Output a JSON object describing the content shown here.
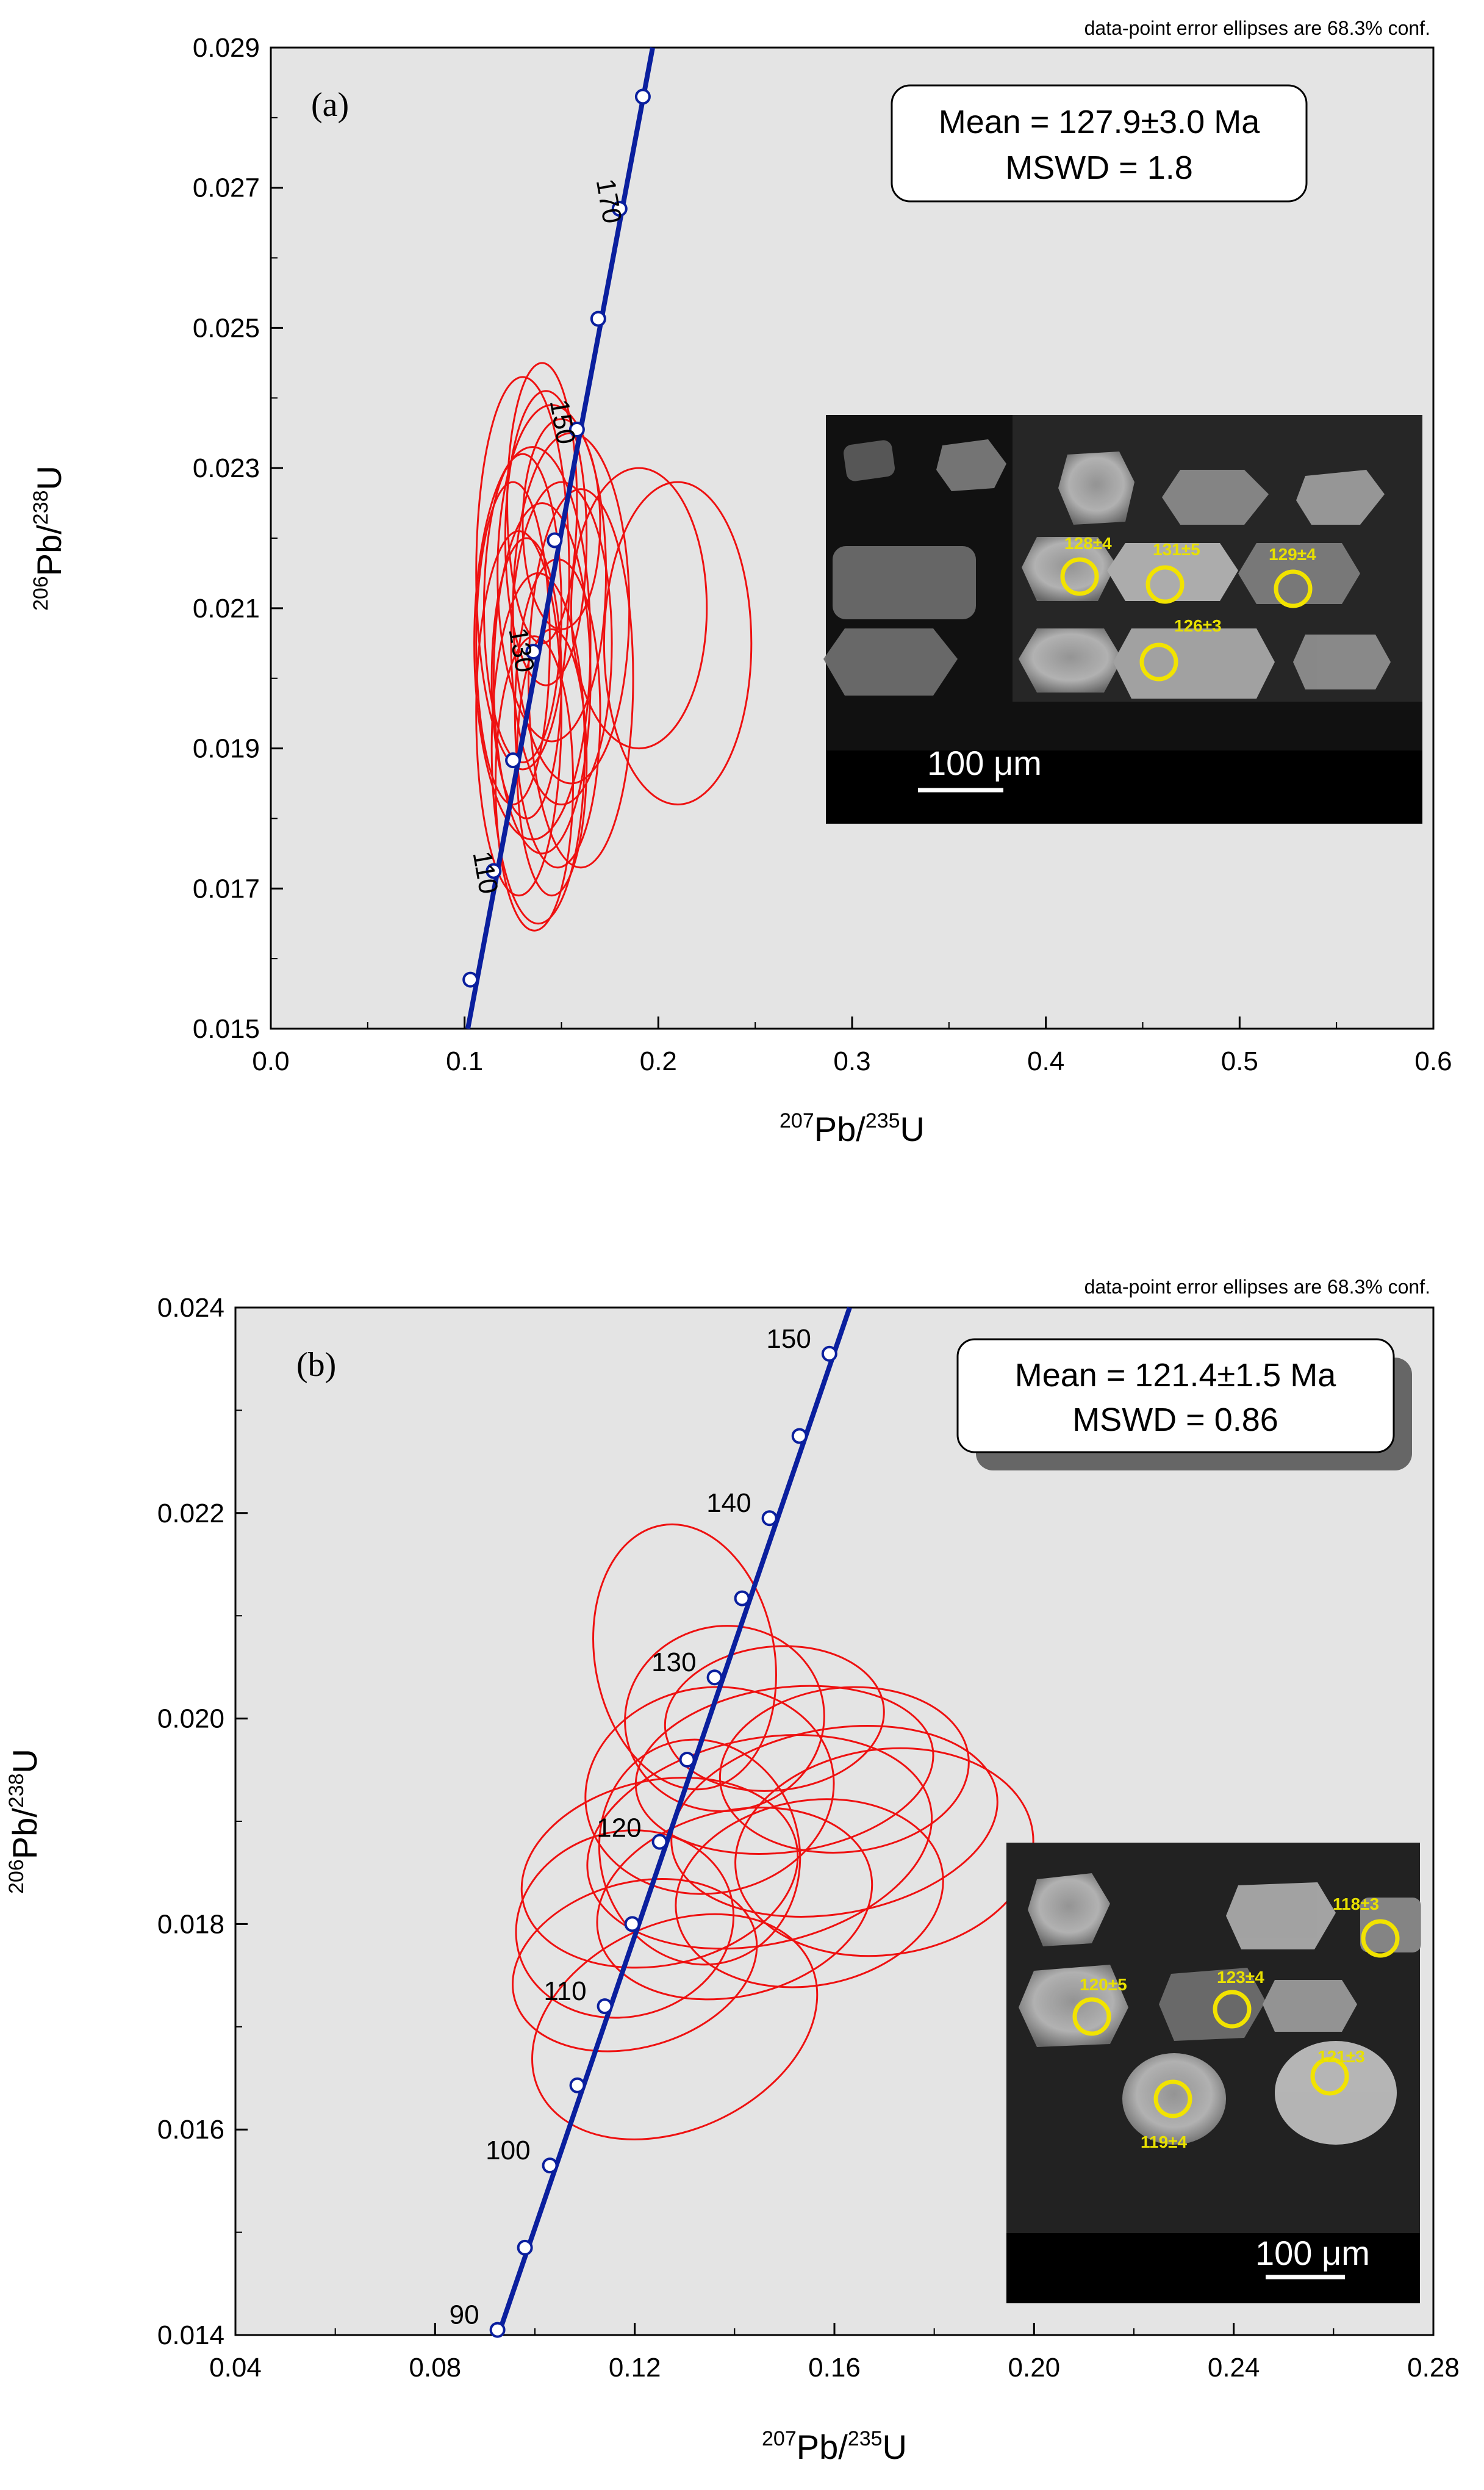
{
  "chart_data": [
    {
      "type": "scatter",
      "panel_label": "(a)",
      "note": "data-point error ellipses are 68.3% conf.",
      "xlabel": {
        "top1": "207",
        "base1": "Pb/",
        "top2": "235",
        "base2": "U"
      },
      "ylabel": {
        "top1": "206",
        "base1": "Pb/",
        "top2": "238",
        "base2": "U"
      },
      "xlim": [
        0.0,
        0.6
      ],
      "ylim": [
        0.015,
        0.029
      ],
      "xticks": [
        "0.0",
        "0.1",
        "0.2",
        "0.3",
        "0.4",
        "0.5",
        "0.6"
      ],
      "yticks": [
        "0.015",
        "0.017",
        "0.019",
        "0.021",
        "0.023",
        "0.025",
        "0.027",
        "0.029"
      ],
      "stat_box": {
        "line1": "Mean = 127.9±3.0 Ma",
        "line2": "MSWD = 1.8"
      },
      "concordia_age_labels": [
        {
          "age": "110",
          "x": 0.115,
          "y": 0.01725
        },
        {
          "age": "130",
          "x": 0.1355,
          "y": 0.02038
        },
        {
          "age": "150",
          "x": 0.158,
          "y": 0.02355
        },
        {
          "age": "170",
          "x": 0.18,
          "y": 0.0267
        }
      ],
      "concordia_points": [
        {
          "x": 0.103,
          "y": 0.0157
        },
        {
          "x": 0.115,
          "y": 0.01725
        },
        {
          "x": 0.125,
          "y": 0.01883
        },
        {
          "x": 0.1355,
          "y": 0.02038
        },
        {
          "x": 0.1465,
          "y": 0.02197
        },
        {
          "x": 0.158,
          "y": 0.02355
        },
        {
          "x": 0.169,
          "y": 0.02513
        },
        {
          "x": 0.18,
          "y": 0.0267
        },
        {
          "x": 0.192,
          "y": 0.0283
        }
      ],
      "ellipses": [
        {
          "cx": 0.135,
          "cy": 0.0205,
          "rx": 0.03,
          "ry": 0.0028
        },
        {
          "cx": 0.14,
          "cy": 0.02,
          "rx": 0.025,
          "ry": 0.0025
        },
        {
          "cx": 0.13,
          "cy": 0.021,
          "rx": 0.02,
          "ry": 0.0022
        },
        {
          "cx": 0.145,
          "cy": 0.0215,
          "rx": 0.028,
          "ry": 0.0024
        },
        {
          "cx": 0.128,
          "cy": 0.0195,
          "rx": 0.022,
          "ry": 0.0026
        },
        {
          "cx": 0.15,
          "cy": 0.0205,
          "rx": 0.026,
          "ry": 0.0023
        },
        {
          "cx": 0.138,
          "cy": 0.019,
          "rx": 0.024,
          "ry": 0.0025
        },
        {
          "cx": 0.142,
          "cy": 0.022,
          "rx": 0.021,
          "ry": 0.0021
        },
        {
          "cx": 0.132,
          "cy": 0.02,
          "rx": 0.018,
          "ry": 0.002
        },
        {
          "cx": 0.155,
          "cy": 0.021,
          "rx": 0.03,
          "ry": 0.0025
        },
        {
          "cx": 0.125,
          "cy": 0.0205,
          "rx": 0.019,
          "ry": 0.0023
        },
        {
          "cx": 0.148,
          "cy": 0.0195,
          "rx": 0.022,
          "ry": 0.0022
        },
        {
          "cx": 0.136,
          "cy": 0.0185,
          "rx": 0.02,
          "ry": 0.0021
        },
        {
          "cx": 0.14,
          "cy": 0.0225,
          "rx": 0.018,
          "ry": 0.002
        },
        {
          "cx": 0.19,
          "cy": 0.021,
          "rx": 0.035,
          "ry": 0.002
        },
        {
          "cx": 0.21,
          "cy": 0.0205,
          "rx": 0.038,
          "ry": 0.0023
        },
        {
          "cx": 0.16,
          "cy": 0.02,
          "rx": 0.027,
          "ry": 0.0027
        },
        {
          "cx": 0.13,
          "cy": 0.0215,
          "rx": 0.024,
          "ry": 0.0028
        },
        {
          "cx": 0.145,
          "cy": 0.0188,
          "rx": 0.018,
          "ry": 0.0019
        },
        {
          "cx": 0.15,
          "cy": 0.0222,
          "rx": 0.02,
          "ry": 0.0015
        }
      ],
      "inset": {
        "spots": [
          "128±4",
          "131±5",
          "129±4",
          "126±3"
        ],
        "scale": "100 μm"
      }
    },
    {
      "type": "scatter",
      "panel_label": "(b)",
      "note": "data-point error ellipses are 68.3% conf.",
      "xlabel": {
        "top1": "207",
        "base1": "Pb/",
        "top2": "235",
        "base2": "U"
      },
      "ylabel": {
        "top1": "206",
        "base1": "Pb/",
        "top2": "238",
        "base2": "U"
      },
      "xlim": [
        0.04,
        0.28
      ],
      "ylim": [
        0.014,
        0.024
      ],
      "xticks": [
        "0.04",
        "0.08",
        "0.12",
        "0.16",
        "0.20",
        "0.24",
        "0.28"
      ],
      "yticks": [
        "0.014",
        "0.016",
        "0.018",
        "0.020",
        "0.022",
        "0.024"
      ],
      "stat_box": {
        "line1": "Mean = 121.4±1.5  Ma",
        "line2": "MSWD = 0.86"
      },
      "concordia_age_labels": [
        {
          "age": "90",
          "x": 0.0925,
          "y": 0.01405
        },
        {
          "age": "100",
          "x": 0.103,
          "y": 0.01565
        },
        {
          "age": "110",
          "x": 0.114,
          "y": 0.0172
        },
        {
          "age": "120",
          "x": 0.125,
          "y": 0.0188
        },
        {
          "age": "130",
          "x": 0.136,
          "y": 0.0204
        },
        {
          "age": "140",
          "x": 0.147,
          "y": 0.02195
        },
        {
          "age": "150",
          "x": 0.159,
          "y": 0.02355
        }
      ],
      "concordia_points": [
        {
          "x": 0.0925,
          "y": 0.01405
        },
        {
          "x": 0.098,
          "y": 0.01485
        },
        {
          "x": 0.103,
          "y": 0.01565
        },
        {
          "x": 0.1085,
          "y": 0.01643
        },
        {
          "x": 0.114,
          "y": 0.0172
        },
        {
          "x": 0.1195,
          "y": 0.018
        },
        {
          "x": 0.125,
          "y": 0.0188
        },
        {
          "x": 0.1305,
          "y": 0.0196
        },
        {
          "x": 0.136,
          "y": 0.0204
        },
        {
          "x": 0.1415,
          "y": 0.02117
        },
        {
          "x": 0.147,
          "y": 0.02195
        },
        {
          "x": 0.153,
          "y": 0.02275
        },
        {
          "x": 0.159,
          "y": 0.02355
        }
      ],
      "ellipses": [
        {
          "cx": 0.13,
          "cy": 0.0206,
          "rx": 0.018,
          "ry": 0.0013,
          "rot": -10
        },
        {
          "cx": 0.128,
          "cy": 0.017,
          "rx": 0.03,
          "ry": 0.001,
          "rot": -25
        },
        {
          "cx": 0.16,
          "cy": 0.019,
          "rx": 0.033,
          "ry": 0.0009,
          "rot": -10
        },
        {
          "cx": 0.17,
          "cy": 0.0187,
          "rx": 0.03,
          "ry": 0.001,
          "rot": -8
        },
        {
          "cx": 0.145,
          "cy": 0.0188,
          "rx": 0.035,
          "ry": 0.001,
          "rot": -12
        },
        {
          "cx": 0.125,
          "cy": 0.0185,
          "rx": 0.028,
          "ry": 0.0009,
          "rot": -12
        },
        {
          "cx": 0.135,
          "cy": 0.0193,
          "rx": 0.025,
          "ry": 0.001,
          "rot": -10
        },
        {
          "cx": 0.15,
          "cy": 0.0195,
          "rx": 0.03,
          "ry": 0.0008,
          "rot": -8
        },
        {
          "cx": 0.14,
          "cy": 0.0182,
          "rx": 0.028,
          "ry": 0.0009,
          "rot": -14
        },
        {
          "cx": 0.118,
          "cy": 0.018,
          "rx": 0.022,
          "ry": 0.0009,
          "rot": -15
        },
        {
          "cx": 0.162,
          "cy": 0.0195,
          "rx": 0.025,
          "ry": 0.0008,
          "rot": -6
        },
        {
          "cx": 0.133,
          "cy": 0.0187,
          "rx": 0.02,
          "ry": 0.0011,
          "rot": -12
        },
        {
          "cx": 0.155,
          "cy": 0.0183,
          "rx": 0.027,
          "ry": 0.0009,
          "rot": -10
        },
        {
          "cx": 0.12,
          "cy": 0.0176,
          "rx": 0.025,
          "ry": 0.0008,
          "rot": -16
        },
        {
          "cx": 0.148,
          "cy": 0.02,
          "rx": 0.022,
          "ry": 0.0007,
          "rot": -6
        },
        {
          "cx": 0.138,
          "cy": 0.02,
          "rx": 0.02,
          "ry": 0.0009,
          "rot": -10
        }
      ],
      "inset": {
        "spots": [
          "118±3",
          "120±5",
          "123±4",
          "121±3",
          "119±4"
        ],
        "scale": "100 μm"
      }
    }
  ]
}
